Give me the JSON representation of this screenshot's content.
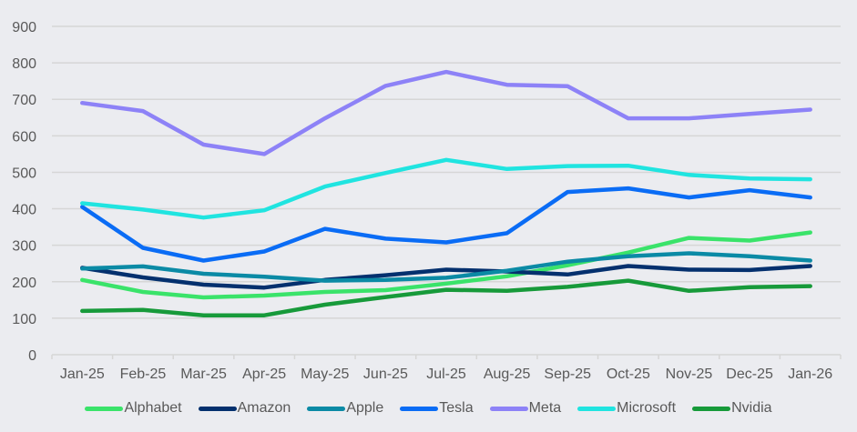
{
  "chart_data": {
    "type": "line",
    "title": "",
    "xlabel": "",
    "ylabel": "",
    "ylim": [
      0,
      900
    ],
    "yticks": [
      "0",
      "100",
      "200",
      "300",
      "400",
      "500",
      "600",
      "700",
      "800",
      "900"
    ],
    "grid": true,
    "legend_position": "bottom",
    "categories": [
      "Jan-25",
      "Feb-25",
      "Mar-25",
      "Apr-25",
      "May-25",
      "Jun-25",
      "Jul-25",
      "Aug-25",
      "Sep-25",
      "Oct-25",
      "Nov-25",
      "Dec-25",
      "Jan-26"
    ],
    "series": [
      {
        "name": "Alphabet",
        "color": "#3ae36a",
        "values": [
          205,
          172,
          157,
          162,
          172,
          177,
          195,
          215,
          245,
          280,
          320,
          313,
          335
        ]
      },
      {
        "name": "Amazon",
        "color": "#04306e",
        "values": [
          238,
          212,
          192,
          184,
          205,
          218,
          233,
          228,
          220,
          243,
          233,
          232,
          243
        ]
      },
      {
        "name": "Apple",
        "color": "#0b8aa5",
        "values": [
          236,
          242,
          222,
          214,
          203,
          205,
          211,
          230,
          255,
          270,
          278,
          270,
          258
        ]
      },
      {
        "name": "Tesla",
        "color": "#0a6cf5",
        "values": [
          405,
          293,
          258,
          283,
          345,
          318,
          308,
          333,
          446,
          456,
          431,
          451,
          431
        ]
      },
      {
        "name": "Meta",
        "color": "#8d82f7",
        "values": [
          690,
          668,
          576,
          550,
          648,
          737,
          775,
          740,
          736,
          648,
          648,
          660,
          672
        ]
      },
      {
        "name": "Microsoft",
        "color": "#20e4e0",
        "values": [
          415,
          398,
          376,
          396,
          461,
          498,
          534,
          509,
          517,
          518,
          493,
          483,
          481
        ]
      },
      {
        "name": "Nvidia",
        "color": "#179a3a",
        "values": [
          120,
          123,
          108,
          108,
          137,
          158,
          178,
          175,
          186,
          203,
          175,
          185,
          188
        ]
      }
    ]
  }
}
